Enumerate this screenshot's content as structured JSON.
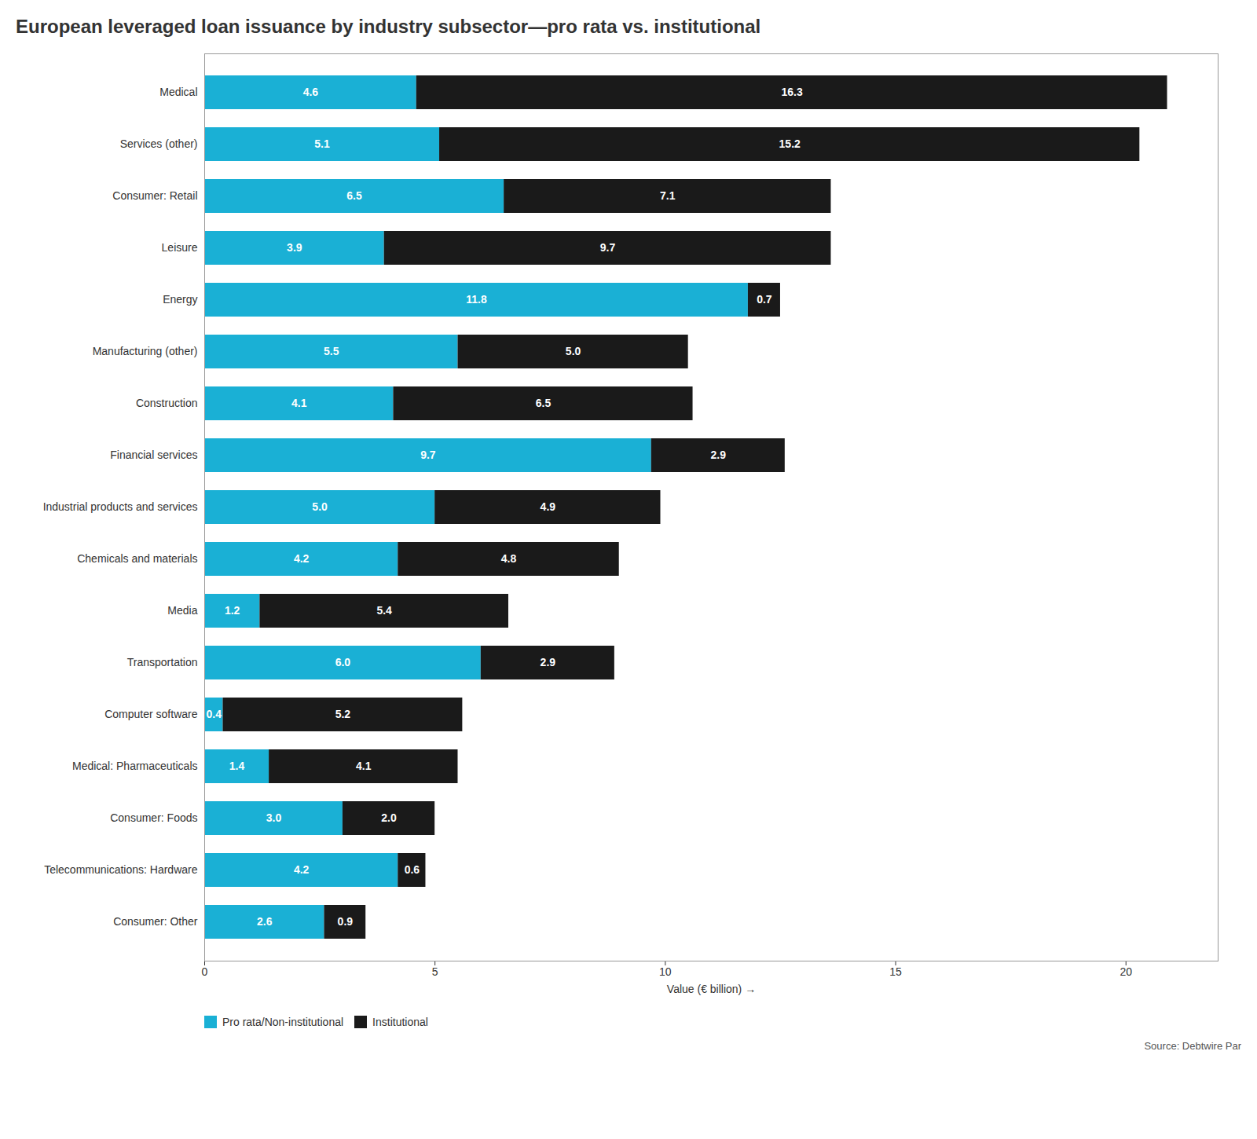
{
  "chart_data": {
    "type": "bar",
    "orientation": "horizontal",
    "stacked": true,
    "data_labels": true,
    "grid": false,
    "legend": "bottom",
    "title": "European leveraged loan issuance by industry subsector—pro rata vs. institutional",
    "xlabel": "Value (€ billion)",
    "categories": [
      "Medical",
      "Services (other)",
      "Consumer: Retail",
      "Leisure",
      "Energy",
      "Manufacturing (other)",
      "Construction",
      "Financial services",
      "Industrial products and services",
      "Chemicals and materials",
      "Media",
      "Transportation",
      "Computer software",
      "Medical: Pharmaceuticals",
      "Consumer: Foods",
      "Telecommunications: Hardware",
      "Consumer: Other"
    ],
    "series": [
      {
        "name": "Pro rata/Non-institutional",
        "color": "#1ab0d5",
        "values": [
          4.6,
          5.1,
          6.5,
          3.9,
          11.8,
          5.5,
          4.1,
          9.7,
          5.0,
          4.2,
          1.2,
          6.0,
          0.4,
          1.4,
          3.0,
          4.2,
          2.6
        ],
        "value_labels": [
          "4.6",
          "5.1",
          "6.5",
          "3.9",
          "11.8",
          "5.5",
          "4.1",
          "9.7",
          "5.0",
          "4.2",
          "1.2",
          "6.0",
          "0.4",
          "1.4",
          "3.0",
          "4.2",
          "2.6"
        ]
      },
      {
        "name": "Institutional",
        "color": "#1a1a1a",
        "values": [
          16.3,
          15.2,
          7.1,
          9.7,
          0.7,
          5.0,
          6.5,
          2.9,
          4.9,
          4.8,
          5.4,
          2.9,
          5.2,
          4.1,
          2.0,
          0.6,
          0.9
        ],
        "value_labels": [
          "16.3",
          "15.2",
          "7.1",
          "9.7",
          "0.7",
          "5.0",
          "6.5",
          "2.9",
          "4.9",
          "4.8",
          "5.4",
          "2.9",
          "5.2",
          "4.1",
          "2.0",
          "0.6",
          "0.9"
        ]
      }
    ],
    "xlim": [
      0,
      22
    ],
    "xticks": [
      0,
      5,
      10,
      15,
      20
    ],
    "annotations": [
      "Source: Debtwire Par"
    ]
  }
}
